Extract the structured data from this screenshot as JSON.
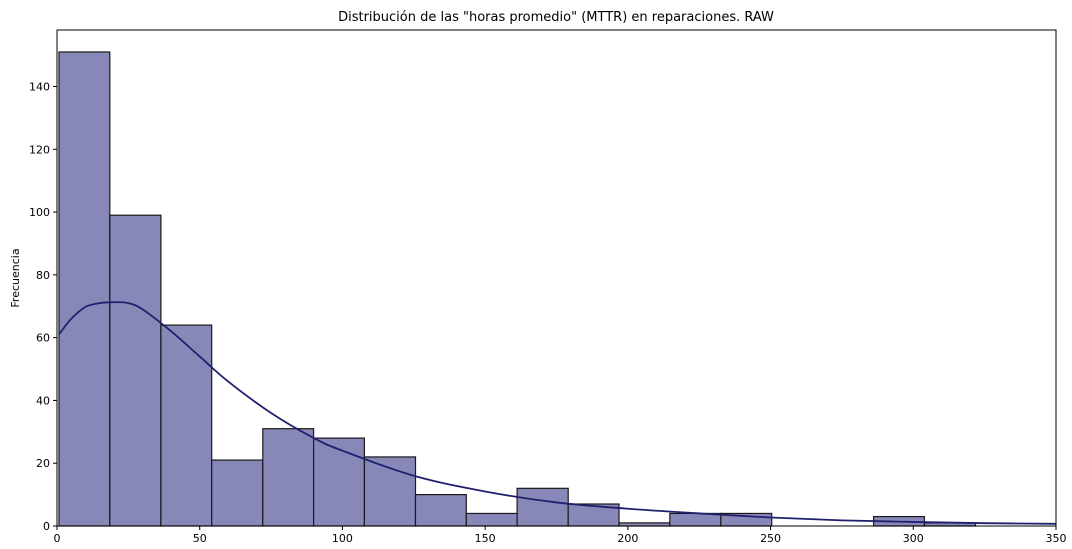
{
  "chart_data": {
    "type": "histogram",
    "title": "Distribución de las \"horas promedio\" (MTTR) en reparaciones. RAW",
    "xlabel": "",
    "ylabel": "Frecuencia",
    "xlim": [
      0,
      350
    ],
    "ylim": [
      0,
      158
    ],
    "xticks": [
      0,
      50,
      100,
      150,
      200,
      250,
      300,
      350
    ],
    "yticks": [
      0,
      20,
      40,
      60,
      80,
      100,
      120,
      140
    ],
    "grid": false,
    "bar_color": "#8888b8",
    "kde_color": "#20206e",
    "bins": [
      {
        "start": 0.7,
        "end": 18.5,
        "count": 151
      },
      {
        "start": 18.5,
        "end": 36.4,
        "count": 99
      },
      {
        "start": 36.4,
        "end": 54.2,
        "count": 64
      },
      {
        "start": 54.2,
        "end": 72.1,
        "count": 21
      },
      {
        "start": 72.1,
        "end": 89.9,
        "count": 31
      },
      {
        "start": 89.9,
        "end": 107.7,
        "count": 28
      },
      {
        "start": 107.7,
        "end": 125.6,
        "count": 22
      },
      {
        "start": 125.6,
        "end": 143.4,
        "count": 10
      },
      {
        "start": 143.4,
        "end": 161.2,
        "count": 4
      },
      {
        "start": 161.2,
        "end": 179.1,
        "count": 12
      },
      {
        "start": 179.1,
        "end": 196.9,
        "count": 7
      },
      {
        "start": 196.9,
        "end": 214.7,
        "count": 1
      },
      {
        "start": 214.7,
        "end": 232.6,
        "count": 4
      },
      {
        "start": 232.6,
        "end": 250.4,
        "count": 4
      },
      {
        "start": 250.4,
        "end": 268.3,
        "count": 0
      },
      {
        "start": 268.3,
        "end": 286.1,
        "count": 0
      },
      {
        "start": 286.1,
        "end": 303.9,
        "count": 3
      },
      {
        "start": 303.9,
        "end": 321.8,
        "count": 1
      }
    ],
    "kde": {
      "x": [
        0.7,
        5,
        10,
        15,
        20,
        25,
        30,
        40,
        50,
        60,
        75,
        90,
        100,
        125,
        150,
        175,
        200,
        225,
        250,
        275,
        300,
        325,
        350
      ],
      "y": [
        61,
        66,
        69.8,
        71,
        71.3,
        71,
        69,
        62,
        54,
        46,
        36,
        28,
        24,
        16,
        11,
        7.5,
        5.5,
        4,
        2.7,
        1.8,
        1.3,
        0.9,
        0.7
      ]
    }
  }
}
